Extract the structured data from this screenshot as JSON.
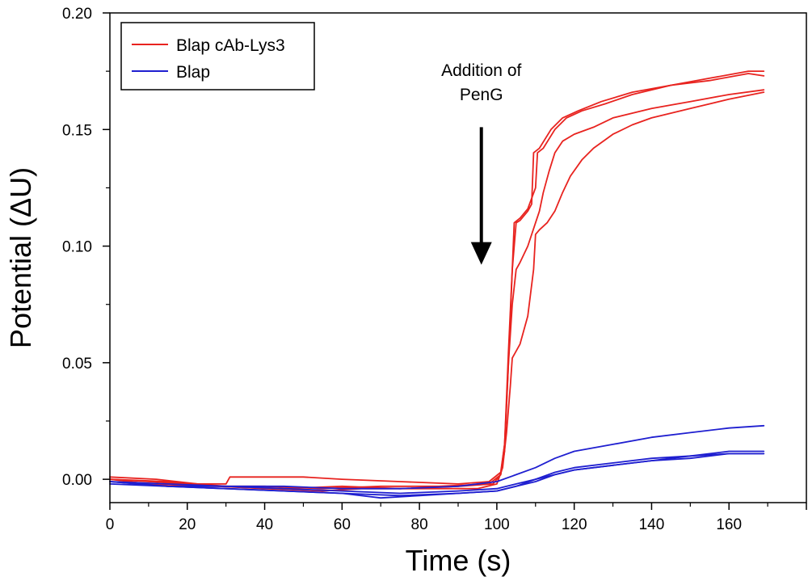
{
  "chart_data": {
    "type": "line",
    "xlabel": "Time (s)",
    "ylabel": "Potential (ΔU)",
    "xlim": [
      0,
      180
    ],
    "ylim": [
      -0.01,
      0.2
    ],
    "x_ticks": [
      0,
      20,
      40,
      60,
      80,
      100,
      120,
      140,
      160
    ],
    "x_tick_labels": [
      "0",
      "20",
      "40",
      "60",
      "80",
      "100",
      "120",
      "140",
      "160"
    ],
    "y_ticks": [
      0.0,
      0.05,
      0.1,
      0.15,
      0.2
    ],
    "y_tick_labels": [
      "0.00",
      "0.05",
      "0.10",
      "0.15",
      "0.20"
    ],
    "grid": false,
    "legend_position": "top-left",
    "legend": [
      {
        "label": "Blap cAb-Lys3",
        "color": "#e8231f"
      },
      {
        "label": "Blap",
        "color": "#1f1fd0"
      }
    ],
    "annotation": {
      "lines": [
        "Addition of",
        "PenG"
      ],
      "arrow_x": 96,
      "arrow_from_y": 0.151,
      "arrow_to_y": 0.092
    },
    "series": [
      {
        "name": "Blap cAb-Lys3",
        "color": "#e8231f",
        "points": [
          [
            0,
            0.0
          ],
          [
            10,
            -0.001
          ],
          [
            20,
            -0.002
          ],
          [
            30,
            -0.002
          ],
          [
            31,
            0.001
          ],
          [
            50,
            0.001
          ],
          [
            60,
            0.0
          ],
          [
            75,
            -0.001
          ],
          [
            90,
            -0.002
          ],
          [
            98,
            -0.001
          ],
          [
            101,
            0.003
          ],
          [
            102,
            0.015
          ],
          [
            103,
            0.055
          ],
          [
            104,
            0.09
          ],
          [
            104.5,
            0.11
          ],
          [
            106,
            0.112
          ],
          [
            108,
            0.116
          ],
          [
            110,
            0.125
          ],
          [
            110.5,
            0.14
          ],
          [
            112,
            0.142
          ],
          [
            115,
            0.15
          ],
          [
            118,
            0.155
          ],
          [
            122,
            0.158
          ],
          [
            128,
            0.161
          ],
          [
            135,
            0.165
          ],
          [
            145,
            0.169
          ],
          [
            155,
            0.172
          ],
          [
            165,
            0.175
          ],
          [
            169,
            0.175
          ]
        ]
      },
      {
        "name": "Blap cAb-Lys3",
        "color": "#e8231f",
        "points": [
          [
            0,
            0.0
          ],
          [
            10,
            -0.002
          ],
          [
            25,
            -0.003
          ],
          [
            40,
            -0.003
          ],
          [
            55,
            -0.004
          ],
          [
            70,
            -0.003
          ],
          [
            85,
            -0.003
          ],
          [
            98,
            -0.002
          ],
          [
            101,
            0.002
          ],
          [
            102,
            0.012
          ],
          [
            103,
            0.05
          ],
          [
            104,
            0.09
          ],
          [
            105,
            0.11
          ],
          [
            106,
            0.111
          ],
          [
            108,
            0.115
          ],
          [
            109,
            0.118
          ],
          [
            109.5,
            0.14
          ],
          [
            111,
            0.142
          ],
          [
            114,
            0.15
          ],
          [
            117,
            0.155
          ],
          [
            121,
            0.158
          ],
          [
            127,
            0.162
          ],
          [
            135,
            0.166
          ],
          [
            145,
            0.169
          ],
          [
            155,
            0.171
          ],
          [
            165,
            0.174
          ],
          [
            169,
            0.173
          ]
        ]
      },
      {
        "name": "Blap cAb-Lys3",
        "color": "#e8231f",
        "points": [
          [
            0,
            0.0
          ],
          [
            15,
            -0.001
          ],
          [
            30,
            -0.003
          ],
          [
            45,
            -0.004
          ],
          [
            60,
            -0.003
          ],
          [
            75,
            -0.004
          ],
          [
            90,
            -0.003
          ],
          [
            99,
            -0.002
          ],
          [
            101,
            0.002
          ],
          [
            102,
            0.015
          ],
          [
            103,
            0.05
          ],
          [
            104,
            0.075
          ],
          [
            105,
            0.09
          ],
          [
            106,
            0.093
          ],
          [
            108,
            0.1
          ],
          [
            110,
            0.11
          ],
          [
            111,
            0.115
          ],
          [
            112,
            0.123
          ],
          [
            113.5,
            0.132
          ],
          [
            115,
            0.14
          ],
          [
            117,
            0.145
          ],
          [
            120,
            0.148
          ],
          [
            125,
            0.151
          ],
          [
            130,
            0.155
          ],
          [
            140,
            0.159
          ],
          [
            150,
            0.162
          ],
          [
            160,
            0.165
          ],
          [
            169,
            0.167
          ]
        ]
      },
      {
        "name": "Blap cAb-Lys3",
        "color": "#e8231f",
        "points": [
          [
            0,
            0.001
          ],
          [
            12,
            0.0
          ],
          [
            28,
            -0.003
          ],
          [
            40,
            -0.004
          ],
          [
            55,
            -0.005
          ],
          [
            65,
            -0.004
          ],
          [
            80,
            -0.004
          ],
          [
            95,
            -0.004
          ],
          [
            100,
            -0.002
          ],
          [
            101.5,
            0.005
          ],
          [
            102.5,
            0.02
          ],
          [
            103.5,
            0.04
          ],
          [
            104,
            0.052
          ],
          [
            106,
            0.058
          ],
          [
            108,
            0.07
          ],
          [
            109.5,
            0.09
          ],
          [
            110,
            0.105
          ],
          [
            111,
            0.107
          ],
          [
            113,
            0.11
          ],
          [
            115,
            0.115
          ],
          [
            117,
            0.123
          ],
          [
            119,
            0.13
          ],
          [
            122,
            0.137
          ],
          [
            125,
            0.142
          ],
          [
            130,
            0.148
          ],
          [
            135,
            0.152
          ],
          [
            140,
            0.155
          ],
          [
            150,
            0.159
          ],
          [
            160,
            0.163
          ],
          [
            169,
            0.166
          ]
        ]
      },
      {
        "name": "Blap",
        "color": "#1f1fd0",
        "points": [
          [
            0,
            -0.001
          ],
          [
            15,
            -0.002
          ],
          [
            30,
            -0.003
          ],
          [
            45,
            -0.003
          ],
          [
            60,
            -0.004
          ],
          [
            75,
            -0.004
          ],
          [
            90,
            -0.003
          ],
          [
            100,
            -0.001
          ],
          [
            105,
            0.002
          ],
          [
            110,
            0.005
          ],
          [
            115,
            0.009
          ],
          [
            120,
            0.012
          ],
          [
            130,
            0.015
          ],
          [
            140,
            0.018
          ],
          [
            150,
            0.02
          ],
          [
            160,
            0.022
          ],
          [
            169,
            0.023
          ]
        ]
      },
      {
        "name": "Blap",
        "color": "#1f1fd0",
        "points": [
          [
            0,
            -0.001
          ],
          [
            15,
            -0.003
          ],
          [
            30,
            -0.003
          ],
          [
            45,
            -0.004
          ],
          [
            60,
            -0.005
          ],
          [
            75,
            -0.006
          ],
          [
            90,
            -0.005
          ],
          [
            100,
            -0.004
          ],
          [
            105,
            -0.002
          ],
          [
            110,
            0.0
          ],
          [
            115,
            0.002
          ],
          [
            120,
            0.004
          ],
          [
            130,
            0.006
          ],
          [
            140,
            0.008
          ],
          [
            150,
            0.01
          ],
          [
            160,
            0.012
          ],
          [
            169,
            0.012
          ]
        ]
      },
      {
        "name": "Blap",
        "color": "#1f1fd0",
        "points": [
          [
            0,
            -0.002
          ],
          [
            15,
            -0.003
          ],
          [
            30,
            -0.004
          ],
          [
            45,
            -0.005
          ],
          [
            60,
            -0.006
          ],
          [
            75,
            -0.007
          ],
          [
            90,
            -0.006
          ],
          [
            100,
            -0.005
          ],
          [
            105,
            -0.003
          ],
          [
            110,
            -0.001
          ],
          [
            115,
            0.002
          ],
          [
            120,
            0.004
          ],
          [
            130,
            0.006
          ],
          [
            140,
            0.008
          ],
          [
            150,
            0.009
          ],
          [
            160,
            0.011
          ],
          [
            169,
            0.011
          ]
        ]
      },
      {
        "name": "Blap",
        "color": "#1f1fd0",
        "points": [
          [
            0,
            -0.001
          ],
          [
            15,
            -0.003
          ],
          [
            30,
            -0.004
          ],
          [
            45,
            -0.005
          ],
          [
            60,
            -0.006
          ],
          [
            70,
            -0.008
          ],
          [
            80,
            -0.007
          ],
          [
            90,
            -0.006
          ],
          [
            100,
            -0.005
          ],
          [
            105,
            -0.003
          ],
          [
            110,
            0.0
          ],
          [
            115,
            0.003
          ],
          [
            120,
            0.005
          ],
          [
            130,
            0.007
          ],
          [
            140,
            0.009
          ],
          [
            150,
            0.01
          ],
          [
            160,
            0.011
          ],
          [
            169,
            0.011
          ]
        ]
      }
    ]
  }
}
